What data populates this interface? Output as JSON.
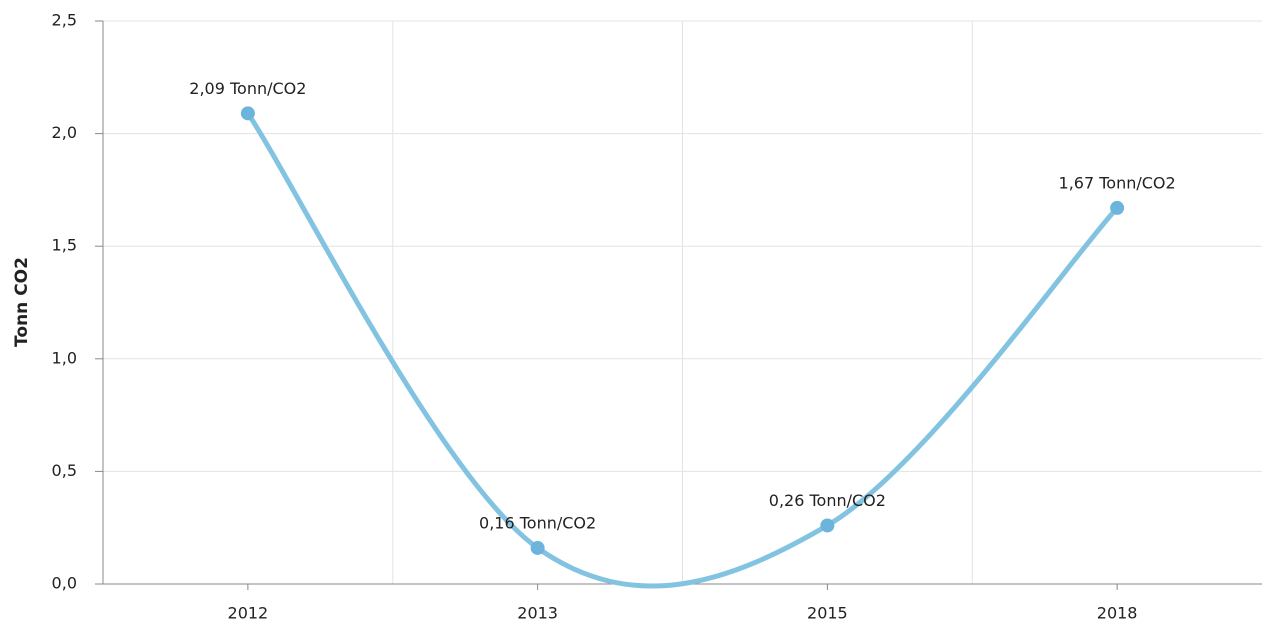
{
  "chart_data": {
    "type": "line",
    "y_label": "Tonn CO2",
    "categories": [
      "2012",
      "2013",
      "2015",
      "2018"
    ],
    "values": [
      2.09,
      0.16,
      0.26,
      1.67
    ],
    "value_labels": [
      "2,09 Tonn/CO2",
      "0,16 Tonn/CO2",
      "0,26 Tonn/CO2",
      "1,67 Tonn/CO2"
    ],
    "color": "#83c3e2",
    "marker_color": "#6cb4dc",
    "ylim": [
      0,
      2.5
    ],
    "yticks": [
      {
        "value": 0,
        "label": "0,0"
      },
      {
        "value": 0.5,
        "label": "0,5"
      },
      {
        "value": 1,
        "label": "1,0"
      },
      {
        "value": 1.5,
        "label": "1,5"
      },
      {
        "value": 2,
        "label": "2,0"
      },
      {
        "value": 2.5,
        "label": "2,5"
      }
    ],
    "grid": true,
    "smooth": true
  }
}
